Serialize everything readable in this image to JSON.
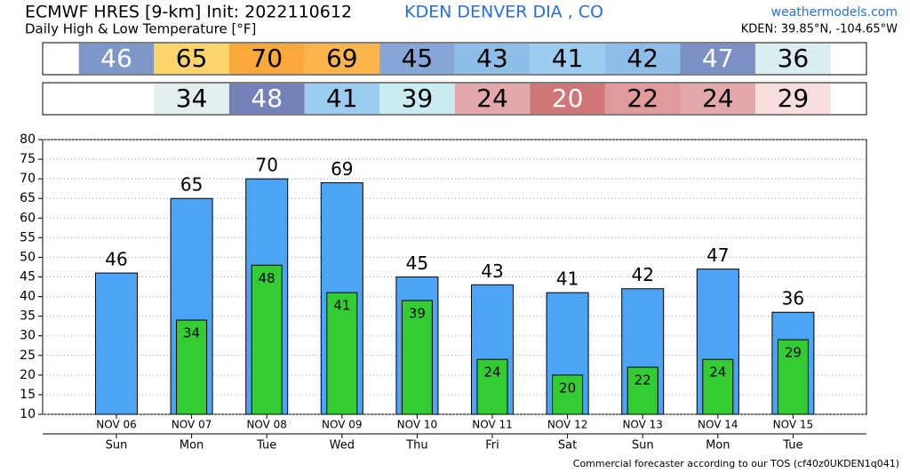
{
  "chart_data": {
    "type": "bar",
    "title": "ECMWF HRES [9-km] Init: 2022110612",
    "station": "KDEN DENVER  DIA    , CO",
    "source": "weathermodels.com",
    "subtitle": "Daily High & Low Temperature [°F]",
    "location": "KDEN: 39.85°N, -104.65°W",
    "footer": "Commercial forecaster according to our TOS (cf40z0UKDEN1q041)",
    "categories": [
      "NOV 06",
      "NOV 07",
      "NOV 08",
      "NOV 09",
      "NOV 10",
      "NOV 11",
      "NOV 12",
      "NOV 13",
      "NOV 14",
      "NOV 15"
    ],
    "weekdays": [
      "Sun",
      "Mon",
      "Tue",
      "Wed",
      "Thu",
      "Fri",
      "Sat",
      "Sun",
      "Mon",
      "Tue"
    ],
    "series": [
      {
        "name": "High",
        "color": "#4da3f5",
        "values": [
          46,
          65,
          70,
          69,
          45,
          43,
          41,
          42,
          47,
          36
        ],
        "cell_colors": [
          "#7d97c9",
          "#fbd56a",
          "#fba93a",
          "#fbb54a",
          "#85a6d6",
          "#8ebde8",
          "#9ccdf0",
          "#8ebde8",
          "#7b90c4",
          "#d9eef0"
        ]
      },
      {
        "name": "Low",
        "color": "#33cc33",
        "values": [
          null,
          34,
          48,
          41,
          39,
          24,
          20,
          22,
          24,
          29
        ],
        "cell_colors": [
          null,
          "#e3eef0",
          "#7482b8",
          "#9ccdf0",
          "#c9ecf0",
          "#e3a8aa",
          "#cf7678",
          "#e09a9c",
          "#e3a8aa",
          "#f9dede"
        ]
      }
    ],
    "ylim": [
      10,
      80
    ],
    "yticks": [
      10,
      15,
      20,
      25,
      30,
      35,
      40,
      45,
      50,
      55,
      60,
      65,
      70,
      75,
      80
    ],
    "grid": true
  }
}
